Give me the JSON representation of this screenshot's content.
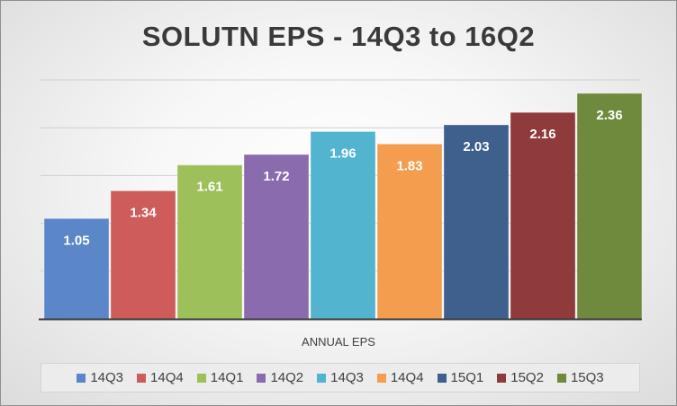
{
  "chart_data": {
    "type": "bar",
    "title": "SOLUTN EPS - 14Q3 to 16Q2",
    "xlabel": "ANNUAL EPS",
    "ylabel": "",
    "ylim": [
      0,
      2.5
    ],
    "grid": true,
    "legend_position": "bottom",
    "series": [
      {
        "name": "14Q3",
        "value": 1.05,
        "color": "#5b87c9"
      },
      {
        "name": "14Q4",
        "value": 1.34,
        "color": "#cd5c5a"
      },
      {
        "name": "14Q1",
        "value": 1.61,
        "color": "#9dc05b"
      },
      {
        "name": "14Q2",
        "value": 1.72,
        "color": "#8a6cae"
      },
      {
        "name": "14Q3",
        "value": 1.96,
        "color": "#52b4cf"
      },
      {
        "name": "14Q4",
        "value": 1.83,
        "color": "#f59d4f"
      },
      {
        "name": "15Q1",
        "value": 2.03,
        "color": "#3f5f8d"
      },
      {
        "name": "15Q2",
        "value": 2.16,
        "color": "#8f3a3b"
      },
      {
        "name": "15Q3",
        "value": 2.36,
        "color": "#6f8a3c"
      }
    ]
  }
}
